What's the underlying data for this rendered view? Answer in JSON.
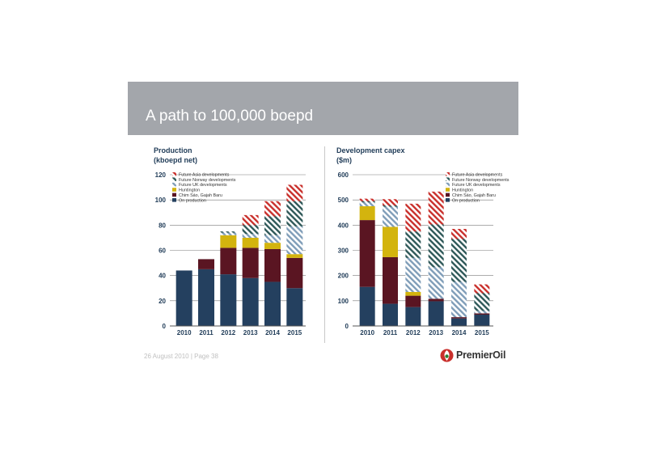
{
  "slide": {
    "title": "A path to 100,000 boepd",
    "footer": "26 August 2010 | Page 38",
    "logo_text": "PremierOil"
  },
  "colors": {
    "title_bar": "#a3a6ab",
    "on_production": "#24405f",
    "chim_sao": "#5a1522",
    "huntington": "#d3b40e",
    "future_uk": "#7f9db8",
    "future_norway": "#2e5858",
    "future_asia": "#c9302c",
    "text_dark": "#1f3b57"
  },
  "legend": [
    {
      "label": "Future Asia developments",
      "series": "future_asia"
    },
    {
      "label": "Future Norway developments",
      "series": "future_norway"
    },
    {
      "label": "Future UK developments",
      "series": "future_uk"
    },
    {
      "label": "Huntington",
      "series": "huntington"
    },
    {
      "label": "Chim Sáo, Gajah Baru",
      "series": "chim_sao"
    },
    {
      "label": "On production",
      "series": "on_production"
    }
  ],
  "chart_data": [
    {
      "type": "bar",
      "stacked": true,
      "title": "Production",
      "subtitle": "(kboepd net)",
      "categories": [
        "2010",
        "2011",
        "2012",
        "2013",
        "2014",
        "2015"
      ],
      "ylim": [
        0,
        120
      ],
      "yticks": [
        0,
        20,
        40,
        60,
        80,
        100,
        120
      ],
      "grid": true,
      "legend_position": "top-left",
      "series": [
        {
          "key": "on_production",
          "name": "On production",
          "values": [
            44,
            45,
            41,
            38,
            35,
            30
          ]
        },
        {
          "key": "chim_sao",
          "name": "Chim Sáo, Gajah Baru",
          "values": [
            0,
            8,
            21,
            24,
            26,
            24
          ]
        },
        {
          "key": "huntington",
          "name": "Huntington",
          "values": [
            0,
            0,
            10,
            8,
            5,
            3
          ]
        },
        {
          "key": "future_uk",
          "name": "Future UK developments",
          "values": [
            0,
            0,
            2,
            3,
            6,
            22
          ]
        },
        {
          "key": "future_norway",
          "name": "Future Norway developments",
          "values": [
            0,
            0,
            1,
            7,
            15,
            20
          ]
        },
        {
          "key": "future_asia",
          "name": "Future Asia developments",
          "values": [
            0,
            0,
            0,
            8,
            12,
            13
          ]
        }
      ]
    },
    {
      "type": "bar",
      "stacked": true,
      "title": "Development capex",
      "subtitle": "($m)",
      "categories": [
        "2010",
        "2011",
        "2012",
        "2013",
        "2014",
        "2015"
      ],
      "ylim": [
        0,
        600
      ],
      "yticks": [
        0,
        100,
        200,
        300,
        400,
        500,
        600
      ],
      "grid": true,
      "legend_position": "top-right",
      "series": [
        {
          "key": "on_production",
          "name": "On production",
          "values": [
            155,
            88,
            75,
            98,
            30,
            45
          ]
        },
        {
          "key": "chim_sao",
          "name": "Chim Sáo, Gajah Baru",
          "values": [
            265,
            185,
            45,
            10,
            5,
            5
          ]
        },
        {
          "key": "huntington",
          "name": "Huntington",
          "values": [
            55,
            120,
            15,
            0,
            0,
            0
          ]
        },
        {
          "key": "future_uk",
          "name": "Future UK developments",
          "values": [
            15,
            80,
            135,
            125,
            140,
            10
          ]
        },
        {
          "key": "future_norway",
          "name": "Future Norway developments",
          "values": [
            5,
            5,
            105,
            170,
            170,
            70
          ]
        },
        {
          "key": "future_asia",
          "name": "Future Asia developments",
          "values": [
            10,
            25,
            110,
            130,
            40,
            35
          ]
        }
      ]
    }
  ]
}
